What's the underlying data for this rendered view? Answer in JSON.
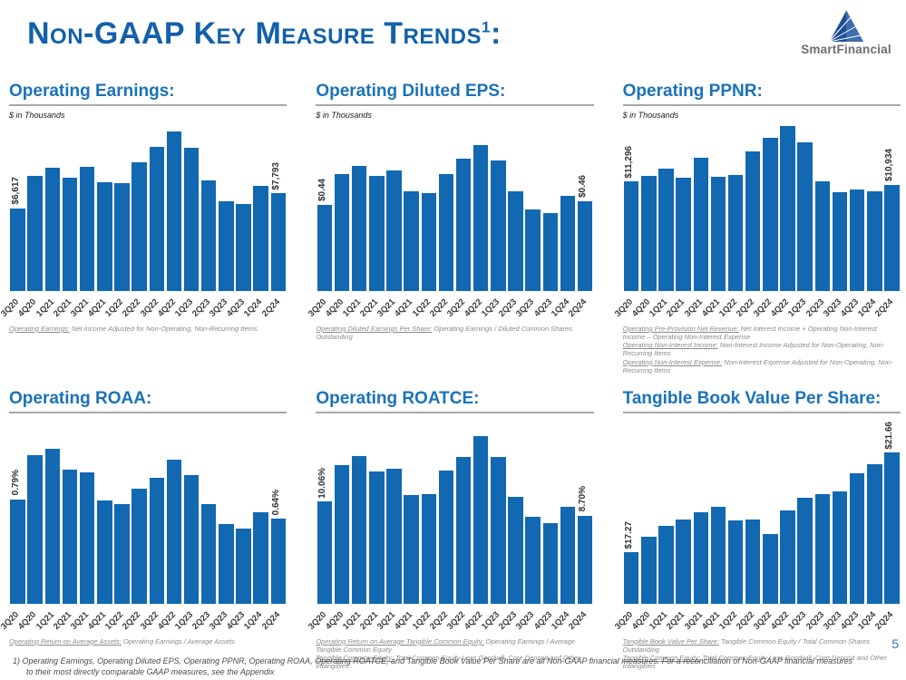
{
  "header": {
    "title_main": "Non-GAAP Key Measure Trends",
    "title_sup": "1",
    "title_colon": ":",
    "logo_text": "SmartFinancial"
  },
  "colors": {
    "bar": "#1268b1",
    "main_title_blue": "#1360ab",
    "section_title_blue": "#1a72b9",
    "underline_gray": "#a8a8a8",
    "logo_gray": "#6d6e71",
    "page_number_blue": "#2e75b6"
  },
  "chart_data": [
    {
      "type": "bar",
      "title": "Operating Earnings:",
      "categories": [
        "3Q20",
        "4Q20",
        "1Q21",
        "2Q21",
        "3Q21",
        "4Q21",
        "1Q22",
        "2Q22",
        "3Q22",
        "4Q22",
        "1Q23",
        "2Q23",
        "3Q23",
        "4Q23",
        "1Q24",
        "2Q24"
      ],
      "values": [
        6617,
        9195,
        9867,
        9080,
        9910,
        8694,
        8623,
        10317,
        11554,
        12749,
        11440,
        8816,
        7193,
        6935,
        8387,
        7793
      ],
      "ylim": [
        0,
        13400
      ],
      "first_label": "$6,617",
      "last_label": "$7,793",
      "ylabel": "$ in Thousands"
    },
    {
      "type": "bar",
      "title": "Operating Diluted EPS:",
      "categories": [
        "3Q20",
        "4Q20",
        "1Q21",
        "2Q21",
        "3Q21",
        "4Q21",
        "1Q22",
        "2Q22",
        "3Q22",
        "4Q22",
        "1Q23",
        "2Q23",
        "3Q23",
        "4Q23",
        "1Q24",
        "2Q24"
      ],
      "values": [
        0.44,
        0.6,
        0.64,
        0.59,
        0.62,
        0.51,
        0.5,
        0.6,
        0.68,
        0.75,
        0.67,
        0.51,
        0.42,
        0.4,
        0.49,
        0.46
      ],
      "ylim": [
        0,
        0.86
      ],
      "first_label": "$0.44",
      "last_label": "$0.46",
      "ylabel": "$ in Thousands"
    },
    {
      "type": "bar",
      "title": "Operating PPNR:",
      "categories": [
        "3Q20",
        "4Q20",
        "1Q21",
        "2Q21",
        "3Q21",
        "4Q21",
        "1Q22",
        "2Q22",
        "3Q22",
        "4Q22",
        "1Q23",
        "2Q23",
        "3Q23",
        "4Q23",
        "1Q24",
        "2Q24"
      ],
      "values": [
        11296,
        11868,
        12657,
        11713,
        13774,
        11749,
        11986,
        14410,
        15835,
        17043,
        15318,
        11323,
        10170,
        10442,
        10261,
        10934
      ],
      "ylim": [
        0,
        17300
      ],
      "first_label": "$11,296",
      "last_label": "$10,934",
      "ylabel": "$ in Thousands"
    },
    {
      "type": "bar",
      "title": "Operating ROAA:",
      "categories": [
        "3Q20",
        "4Q20",
        "1Q21",
        "2Q21",
        "3Q21",
        "4Q21",
        "1Q22",
        "2Q22",
        "3Q22",
        "4Q22",
        "1Q23",
        "2Q23",
        "3Q23",
        "4Q23",
        "1Q24",
        "2Q24"
      ],
      "values": [
        0.79,
        1.12,
        1.17,
        1.01,
        0.99,
        0.78,
        0.75,
        0.87,
        0.95,
        1.09,
        0.97,
        0.75,
        0.6,
        0.57,
        0.69,
        0.64
      ],
      "ylim": [
        0,
        1.37
      ],
      "first_label": "0.79%",
      "last_label": "0.64%",
      "ylabel": ""
    },
    {
      "type": "bar",
      "title": "Operating ROATCE:",
      "categories": [
        "3Q20",
        "4Q20",
        "1Q21",
        "2Q21",
        "3Q21",
        "4Q21",
        "1Q22",
        "2Q22",
        "3Q22",
        "4Q22",
        "1Q23",
        "2Q23",
        "3Q23",
        "4Q23",
        "1Q24",
        "2Q24"
      ],
      "values": [
        10.06,
        13.7,
        14.61,
        13.01,
        13.28,
        10.71,
        10.82,
        13.13,
        14.52,
        16.56,
        14.49,
        10.59,
        8.58,
        7.98,
        9.55,
        8.7
      ],
      "ylim": [
        0,
        17.9
      ],
      "first_label": "10.06%",
      "last_label": "8.70%",
      "ylabel": ""
    },
    {
      "type": "bar",
      "title": "Tangible Book Value Per Share:",
      "categories": [
        "3Q20",
        "4Q20",
        "1Q21",
        "2Q21",
        "3Q21",
        "4Q21",
        "1Q22",
        "2Q22",
        "3Q22",
        "4Q22",
        "1Q23",
        "2Q23",
        "3Q23",
        "4Q23",
        "1Q24",
        "2Q24"
      ],
      "values": [
        17.27,
        17.96,
        18.45,
        18.7,
        19.04,
        19.29,
        18.66,
        18.71,
        18.07,
        19.13,
        19.67,
        19.82,
        19.97,
        20.76,
        21.16,
        21.66
      ],
      "ylim": [
        15,
        23
      ],
      "first_label": "$17.27",
      "last_label": "$21.66",
      "ylabel": ""
    }
  ],
  "cards": [
    {
      "subtitle": "$ in Thousands",
      "footnotes": [
        {
          "term": "Operating Earnings:",
          "rest": "Net Income Adjusted for Non-Operating, Non-Recurring Items"
        }
      ]
    },
    {
      "subtitle": "$ in Thousands",
      "footnotes": [
        {
          "term": "Operating Diluted Earnings Per Share:",
          "rest": "Operating Earnings / Diluted Common Shares Outstanding"
        }
      ]
    },
    {
      "subtitle": "$ in Thousands",
      "footnotes": [
        {
          "term": "Operating Pre-Provision Net Revenue:",
          "rest": "Net Interest Income + Operating Non-Interest Income – Operating Non-Interest Expense"
        },
        {
          "term": "Operating Non-Interest Income:",
          "rest": "Non-Interest Income Adjusted for Non-Operating, Non-Recurring Items"
        },
        {
          "term": "Operating Non-Interest Expense:",
          "rest": "Non-Interest Expense Adjusted for Non-Operating, Non-Recurring Items"
        }
      ]
    },
    {
      "subtitle": "",
      "footnotes": [
        {
          "term": "Operating Return on Average Assets:",
          "rest": "Operating Earnings / Average Assets"
        }
      ]
    },
    {
      "subtitle": "",
      "footnotes": [
        {
          "term": "Operating Return on Average Tangible Common Equity:",
          "rest": "Operating Earnings / Average Tangible Common Equity"
        },
        {
          "term": "Tangible Common Equity:",
          "rest": "Total Common Equity Less Goodwill, Core Deposit and Other Intangibles"
        }
      ]
    },
    {
      "subtitle": "",
      "footnotes": [
        {
          "term": "Tangible Book Value Per Share:",
          "rest": "Tangible Common Equity / Total Common Shares Outstanding"
        },
        {
          "term": "Tangible Common Equity:",
          "rest": "Total Common Equity Less Goodwill, Core Deposit and Other Intangibles"
        }
      ]
    }
  ],
  "footer": {
    "note_number": "1)",
    "note_text": "Operating Earnings, Operating Diluted EPS, Operating PPNR, Operating ROAA, Operating ROATCE, and Tangible Book Value Per Share are all Non-GAAP financial measures. For a reconciliation of Non-GAAP financial measures to their most directly comparable GAAP measures, see the Appendix",
    "page_number": "5"
  }
}
